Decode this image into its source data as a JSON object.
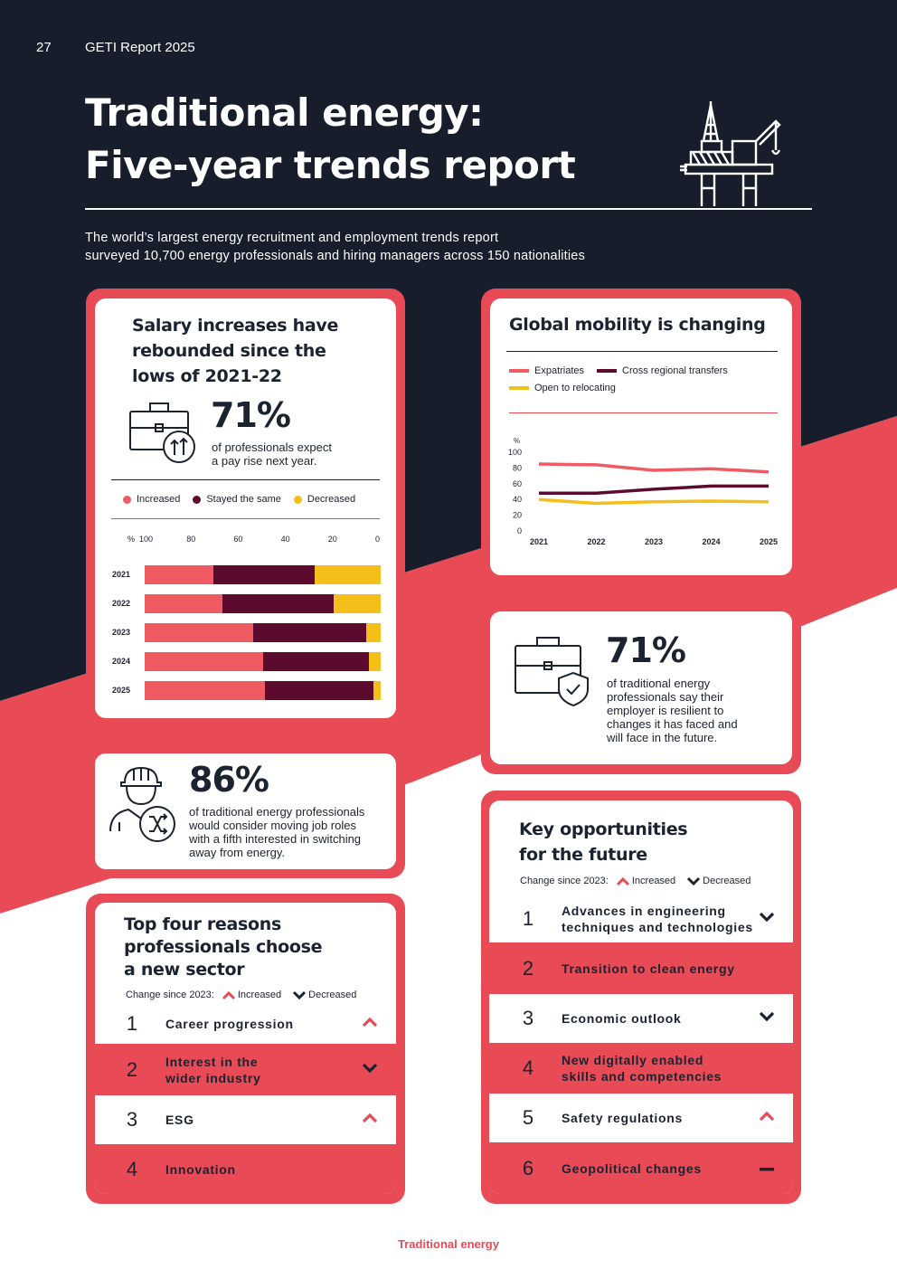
{
  "header": {
    "page_number": "27",
    "report_name": "GETI Report 2025",
    "title_line1": "Traditional energy:",
    "title_line2": "Five-year trends report",
    "subtitle_line1": "The world’s largest energy recruitment and employment trends report",
    "subtitle_line2": "surveyed 10,700 energy professionals and hiring managers across 150 nationalities",
    "rig_icon": "oil-rig-icon"
  },
  "colors": {
    "navy": "#171d2b",
    "red": "#e84b55",
    "increased": "#f05a62",
    "stayed": "#5c0a2e",
    "decreased": "#f5be18"
  },
  "salary": {
    "heading_line1": "Salary increases have",
    "heading_line2": "rebounded since the",
    "heading_line3": "lows of 2021-22",
    "stat": "71%",
    "stat_text_line1": "of professionals expect",
    "stat_text_line2": "a pay rise next year.",
    "icon": "briefcase-pay-rise-icon",
    "legend": [
      "Increased",
      "Stayed the same",
      "Decreased"
    ]
  },
  "mobility": {
    "heading": "Global mobility is changing",
    "legend": [
      "Expatriates",
      "Cross regional transfers",
      "Open to relocating"
    ]
  },
  "chart_data": [
    {
      "type": "bar",
      "orientation": "horizontal-stacked",
      "categories": [
        "2021",
        "2022",
        "2023",
        "2024",
        "2025"
      ],
      "series": [
        {
          "name": "Increased",
          "values": [
            29,
            33,
            46,
            50,
            51
          ]
        },
        {
          "name": "Stayed the same",
          "values": [
            43,
            47,
            48,
            45,
            46
          ]
        },
        {
          "name": "Decreased",
          "values": [
            28,
            20,
            6,
            5,
            3
          ]
        }
      ],
      "axis_unit": "%",
      "ticks": [
        "100",
        "80",
        "60",
        "40",
        "20",
        "0"
      ],
      "xlim": [
        0,
        100
      ],
      "legend_position": "top"
    },
    {
      "type": "line",
      "x": [
        "2021",
        "2022",
        "2023",
        "2024",
        "2025"
      ],
      "series": [
        {
          "name": "Expatriates",
          "values": [
            85,
            84,
            77,
            79,
            75
          ]
        },
        {
          "name": "Cross regional transfers",
          "values": [
            48,
            48,
            53,
            57,
            57
          ]
        },
        {
          "name": "Open to relocating",
          "values": [
            40,
            35,
            37,
            38,
            37
          ]
        }
      ],
      "ylabel": "%",
      "yticks": [
        "100",
        "80",
        "60",
        "40",
        "20",
        "0"
      ],
      "ylim": [
        0,
        100
      ],
      "grid": false,
      "legend_position": "top"
    }
  ],
  "resilience": {
    "stat": "71%",
    "text_lines": [
      "of traditional energy",
      "professionals say their",
      "employer is resilient to",
      "changes it has faced and",
      "will face in the future."
    ],
    "icon": "briefcase-shield-icon"
  },
  "moving": {
    "stat": "86%",
    "text_lines": [
      "of traditional energy professionals",
      "would consider moving job roles",
      "with a fifth interested in switching",
      "away from energy."
    ],
    "icon": "worker-shuffle-icon"
  },
  "reasons": {
    "heading_line1": "Top four reasons",
    "heading_line2": "professionals choose",
    "heading_line3": "a new sector",
    "change_label": "Change since 2023:",
    "increased_label": "Increased",
    "decreased_label": "Decreased",
    "items": [
      {
        "num": "1",
        "line1": "Career progression",
        "line2": "",
        "trend": "up"
      },
      {
        "num": "2",
        "line1": "Interest in the",
        "line2": "wider industry",
        "trend": "down"
      },
      {
        "num": "3",
        "line1": "ESG",
        "line2": "",
        "trend": "up"
      },
      {
        "num": "4",
        "line1": "Innovation",
        "line2": "",
        "trend": "none"
      }
    ]
  },
  "opportunities": {
    "heading_line1": "Key opportunities",
    "heading_line2": "for the future",
    "change_label": "Change since 2023:",
    "increased_label": "Increased",
    "decreased_label": "Decreased",
    "items": [
      {
        "num": "1",
        "line1": "Advances in engineering",
        "line2": "techniques and technologies",
        "trend": "down"
      },
      {
        "num": "2",
        "line1": "Transition to clean energy",
        "line2": "",
        "trend": "none"
      },
      {
        "num": "3",
        "line1": "Economic outlook",
        "line2": "",
        "trend": "down"
      },
      {
        "num": "4",
        "line1": "New digitally enabled",
        "line2": "skills and competencies",
        "trend": "none"
      },
      {
        "num": "5",
        "line1": "Safety regulations",
        "line2": "",
        "trend": "up"
      },
      {
        "num": "6",
        "line1": "Geopolitical changes",
        "line2": "",
        "trend": "flat"
      }
    ]
  },
  "footer": {
    "label": "Traditional energy"
  }
}
